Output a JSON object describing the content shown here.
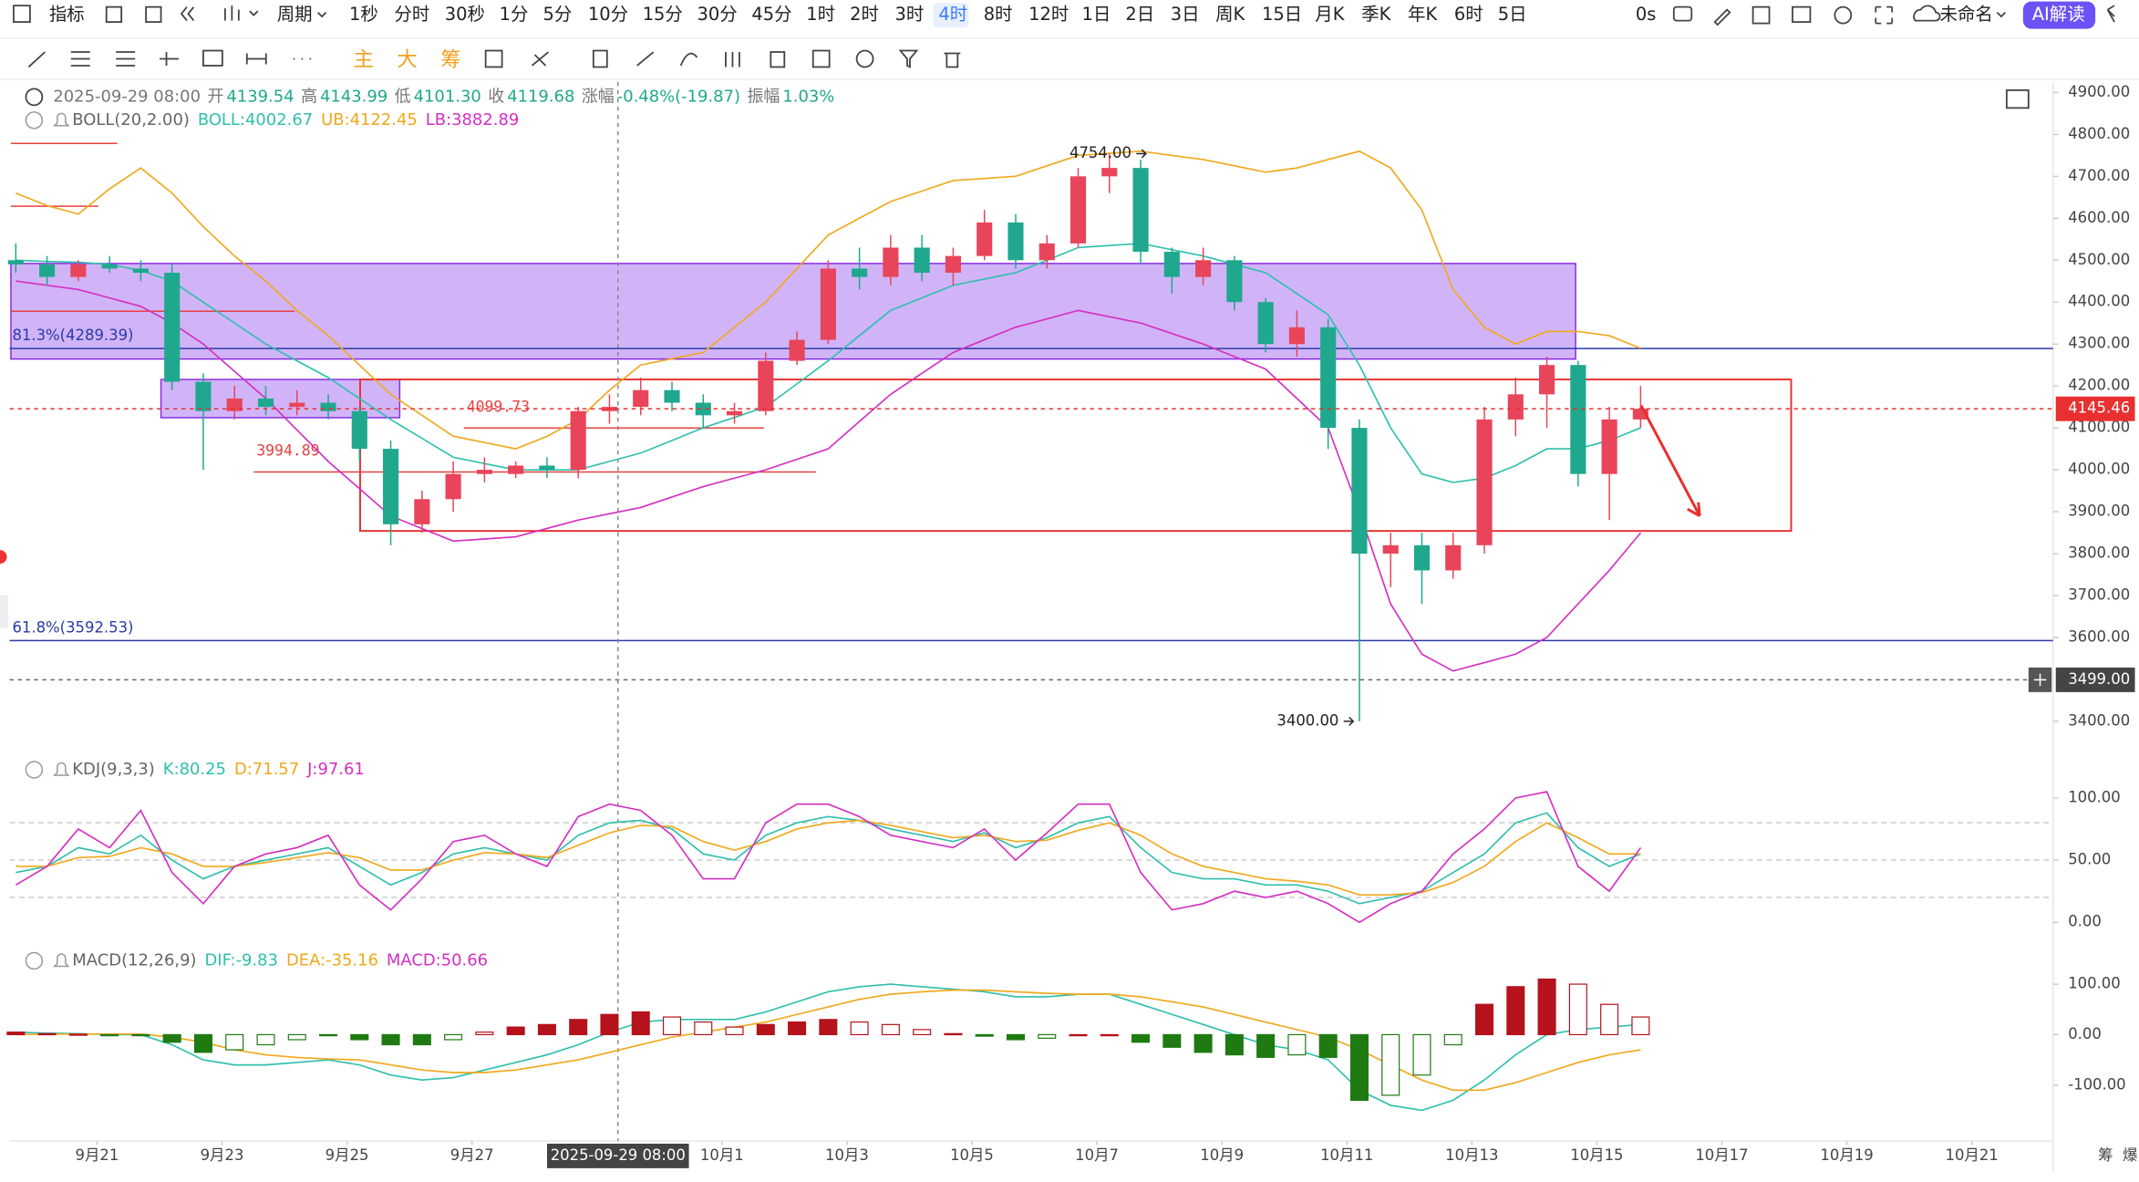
{
  "toolbar": {
    "indicator": "指标",
    "period": "周期",
    "periods": [
      "1秒",
      "分时",
      "30秒",
      "1分",
      "5分",
      "10分",
      "15分",
      "30分",
      "45分",
      "1时",
      "2时",
      "3时",
      "4时",
      "8时",
      "12时",
      "1日",
      "2日",
      "3日",
      "周K",
      "15日",
      "月K",
      "季K",
      "年K",
      "6时",
      "5日"
    ],
    "timer": "0s",
    "layout_name": "未命名",
    "ai": "AI解读"
  },
  "tools": [
    "主",
    "大",
    "筹"
  ],
  "info": {
    "time": "2025-09-29 08:00",
    "fields": [
      [
        "开",
        "4139.54"
      ],
      [
        "高",
        "4143.99"
      ],
      [
        "低",
        "4101.30"
      ],
      [
        "收",
        "4119.68"
      ],
      [
        "涨幅",
        "-0.48%(-19.87)"
      ],
      [
        "振幅",
        "1.03%"
      ]
    ]
  },
  "crosshair": {
    "time": "2025-09-29 08:00",
    "price": {
      "value": 3499,
      "label": "3499.00"
    }
  },
  "side_labels": [
    "筹",
    "爆"
  ],
  "chart_data": [
    {
      "type": "candlestick",
      "indicator": "BOLL(20,2.00)",
      "xlim": [
        -0.2,
        65.2
      ],
      "xticks": [
        {
          "value": 2.6,
          "label": "9月21"
        },
        {
          "value": 6.6,
          "label": "9月23"
        },
        {
          "value": 10.6,
          "label": "9月25"
        },
        {
          "value": 14.6,
          "label": "9月27"
        },
        {
          "value": 22.6,
          "label": "10月1"
        },
        {
          "value": 26.6,
          "label": "10月3"
        },
        {
          "value": 30.6,
          "label": "10月5"
        },
        {
          "value": 34.6,
          "label": "10月7"
        },
        {
          "value": 38.6,
          "label": "10月9"
        },
        {
          "value": 42.6,
          "label": "10月11"
        },
        {
          "value": 46.6,
          "label": "10月13"
        },
        {
          "value": 50.6,
          "label": "10月15"
        },
        {
          "value": 54.6,
          "label": "10月17"
        },
        {
          "value": 58.6,
          "label": "10月19"
        },
        {
          "value": 62.6,
          "label": "10月21"
        }
      ],
      "ylim": [
        3330,
        4925
      ],
      "yticks": [
        {
          "value": 3400,
          "label": "3400.00"
        },
        {
          "value": 3600,
          "label": "3600.00"
        },
        {
          "value": 3700,
          "label": "3700.00"
        },
        {
          "value": 3800,
          "label": "3800.00"
        },
        {
          "value": 3900,
          "label": "3900.00"
        },
        {
          "value": 4000,
          "label": "4000.00"
        },
        {
          "value": 4100,
          "label": "4100.00"
        },
        {
          "value": 4200,
          "label": "4200.00"
        },
        {
          "value": 4300,
          "label": "4300.00"
        },
        {
          "value": 4400,
          "label": "4400.00"
        },
        {
          "value": 4500,
          "label": "4500.00"
        },
        {
          "value": 4600,
          "label": "4600.00"
        },
        {
          "value": 4700,
          "label": "4700.00"
        },
        {
          "value": 4800,
          "label": "4800.00"
        },
        {
          "value": 4900,
          "label": "4900.00"
        }
      ],
      "up_color": "#e8455a",
      "down_color": "#1fa88e",
      "open": [
        4500,
        4490,
        4460,
        4490,
        4480,
        4470,
        4210,
        4140,
        4170,
        4150,
        4160,
        4140,
        4050,
        3870,
        3930,
        3990,
        3990,
        4010,
        4000,
        4140,
        4150,
        4190,
        4160,
        4130,
        4140,
        4260,
        4310,
        4480,
        4460,
        4530,
        4470,
        4510,
        4590,
        4500,
        4540,
        4700,
        4720,
        4520,
        4460,
        4500,
        4400,
        4300,
        4340,
        4100,
        3800,
        3820,
        3760,
        3820,
        4120,
        4180,
        4250,
        3990,
        4120
      ],
      "high": [
        4540,
        4510,
        4500,
        4510,
        4500,
        4490,
        4230,
        4200,
        4200,
        4190,
        4180,
        4150,
        4070,
        3950,
        4020,
        4030,
        4020,
        4030,
        4150,
        4180,
        4220,
        4210,
        4180,
        4160,
        4280,
        4330,
        4500,
        4530,
        4560,
        4560,
        4530,
        4620,
        4610,
        4560,
        4720,
        4754,
        4740,
        4530,
        4530,
        4510,
        4410,
        4380,
        4360,
        4120,
        3850,
        3850,
        3850,
        4150,
        4220,
        4270,
        4260,
        4150,
        4200
      ],
      "low": [
        4470,
        4440,
        4450,
        4470,
        4450,
        4190,
        4000,
        4120,
        4130,
        4130,
        4120,
        4020,
        3820,
        3850,
        3900,
        3970,
        3980,
        3980,
        3980,
        4110,
        4130,
        4140,
        4100,
        4110,
        4130,
        4250,
        4300,
        4430,
        4440,
        4450,
        4440,
        4500,
        4480,
        4480,
        4530,
        4660,
        4490,
        4420,
        4440,
        4380,
        4280,
        4270,
        4050,
        3400,
        3720,
        3680,
        3740,
        3800,
        4080,
        4100,
        3960,
        3880,
        4100
      ],
      "close": [
        4490,
        4460,
        4490,
        4480,
        4470,
        4210,
        4140,
        4170,
        4150,
        4160,
        4140,
        4050,
        3870,
        3930,
        3990,
        4000,
        4010,
        4000,
        4140,
        4150,
        4190,
        4160,
        4130,
        4140,
        4260,
        4310,
        4480,
        4460,
        4530,
        4470,
        4510,
        4590,
        4500,
        4540,
        4700,
        4720,
        4520,
        4460,
        4500,
        4400,
        4300,
        4340,
        4100,
        3800,
        3820,
        3760,
        3820,
        4120,
        4180,
        4250,
        3990,
        4120,
        4145.46
      ],
      "series": [
        {
          "name": "BOLL:4002.67",
          "color": "#2fbfad",
          "values": [
            4500,
            4497,
            4495,
            4490,
            4475,
            4450,
            4400,
            4350,
            4300,
            4260,
            4220,
            4170,
            4120,
            4075,
            4030,
            4015,
            4000,
            4000,
            4000,
            4020,
            4040,
            4070,
            4100,
            4125,
            4150,
            4205,
            4260,
            4320,
            4380,
            4410,
            4440,
            4455,
            4470,
            4500,
            4530,
            4535,
            4540,
            4525,
            4510,
            4490,
            4470,
            4420,
            4370,
            4250,
            4100,
            3990,
            3970,
            3980,
            4010,
            4050,
            4050,
            4070,
            4100
          ]
        },
        {
          "name": "UB:4122.45",
          "color": "#f0a81c",
          "values": [
            4660,
            4630,
            4610,
            4670,
            4720,
            4660,
            4580,
            4510,
            4450,
            4380,
            4320,
            4250,
            4180,
            4130,
            4080,
            4065,
            4050,
            4080,
            4120,
            4190,
            4250,
            4265,
            4280,
            4340,
            4400,
            4480,
            4560,
            4600,
            4640,
            4665,
            4690,
            4695,
            4700,
            4725,
            4750,
            4755,
            4760,
            4750,
            4740,
            4725,
            4710,
            4720,
            4740,
            4760,
            4720,
            4620,
            4430,
            4340,
            4300,
            4330,
            4330,
            4320,
            4290
          ]
        },
        {
          "name": "LB:3882.89",
          "color": "#d42fc1",
          "values": [
            4450,
            4440,
            4430,
            4410,
            4390,
            4350,
            4300,
            4235,
            4170,
            4095,
            4020,
            3955,
            3890,
            3860,
            3830,
            3835,
            3840,
            3860,
            3880,
            3895,
            3910,
            3935,
            3960,
            3980,
            4000,
            4025,
            4050,
            4115,
            4180,
            4230,
            4280,
            4310,
            4340,
            4360,
            4380,
            4365,
            4350,
            4325,
            4300,
            4270,
            4240,
            4170,
            4100,
            3900,
            3680,
            3560,
            3520,
            3540,
            3560,
            3600,
            3680,
            3760,
            3850
          ]
        }
      ],
      "levels": [
        {
          "value": 4289.39,
          "label": "81.3%(4289.39)",
          "color": "#2a3aa8"
        },
        {
          "value": 3592.53,
          "label": "61.8%(3592.53)",
          "color": "#2a3aa8"
        }
      ],
      "marked_prices": [
        {
          "value": 4099.73,
          "color": "#e84040"
        },
        {
          "value": 3994.89,
          "color": "#e84040"
        }
      ],
      "extremes": [
        {
          "value": 4754,
          "label": "4754.00"
        },
        {
          "value": 3400,
          "label": "3400.00"
        }
      ],
      "last_price": 4145.46
    },
    {
      "type": "line",
      "indicator": "KDJ(9,3,3)",
      "ylim": [
        -20,
        115
      ],
      "yticks": [
        {
          "value": 0,
          "label": "0.00"
        },
        {
          "value": 50,
          "label": "50.00"
        },
        {
          "value": 100,
          "label": "100.00"
        }
      ],
      "reference_lines": [
        20,
        50,
        80
      ],
      "series": [
        {
          "name": "K:80.25",
          "color": "#2fbfad",
          "values": [
            40,
            45,
            60,
            55,
            70,
            50,
            35,
            45,
            50,
            55,
            60,
            45,
            30,
            40,
            55,
            60,
            55,
            50,
            70,
            80,
            82,
            75,
            55,
            50,
            70,
            80,
            85,
            82,
            75,
            70,
            65,
            72,
            60,
            68,
            80,
            85,
            60,
            40,
            35,
            35,
            30,
            30,
            25,
            15,
            20,
            25,
            40,
            55,
            80,
            88,
            60,
            45,
            55
          ]
        },
        {
          "name": "D:71.57",
          "color": "#f0a81c",
          "values": [
            45,
            45,
            52,
            53,
            60,
            55,
            45,
            45,
            48,
            52,
            56,
            52,
            42,
            42,
            50,
            56,
            55,
            52,
            62,
            72,
            78,
            77,
            65,
            58,
            65,
            75,
            80,
            82,
            78,
            73,
            68,
            70,
            65,
            66,
            74,
            80,
            70,
            55,
            45,
            40,
            35,
            33,
            30,
            22,
            22,
            24,
            32,
            45,
            65,
            80,
            68,
            55,
            55
          ]
        },
        {
          "name": "J:97.61",
          "color": "#d42fc1",
          "values": [
            30,
            45,
            75,
            60,
            90,
            40,
            15,
            45,
            55,
            60,
            70,
            30,
            10,
            35,
            65,
            70,
            55,
            45,
            85,
            95,
            90,
            70,
            35,
            35,
            80,
            95,
            95,
            85,
            70,
            65,
            60,
            75,
            50,
            72,
            95,
            95,
            40,
            10,
            15,
            25,
            20,
            25,
            15,
            0,
            15,
            25,
            55,
            75,
            100,
            105,
            45,
            25,
            60
          ]
        }
      ]
    },
    {
      "type": "macd",
      "indicator": "MACD(12,26,9)",
      "ylim": [
        -205,
        130
      ],
      "yticks": [
        {
          "value": -100,
          "label": "-100.00"
        },
        {
          "value": 0,
          "label": "0.00"
        },
        {
          "value": 100,
          "label": "100.00"
        }
      ],
      "series": [
        {
          "name": "DIF:-9.83",
          "color": "#2fbfad",
          "values": [
            5,
            3,
            2,
            0,
            0,
            -20,
            -50,
            -60,
            -60,
            -55,
            -50,
            -60,
            -80,
            -90,
            -85,
            -70,
            -55,
            -40,
            -20,
            5,
            25,
            30,
            30,
            30,
            45,
            65,
            85,
            95,
            100,
            95,
            90,
            85,
            75,
            75,
            80,
            80,
            60,
            40,
            20,
            0,
            -20,
            -30,
            -50,
            -110,
            -140,
            -150,
            -130,
            -90,
            -40,
            0,
            10,
            15,
            20
          ]
        },
        {
          "name": "DEA:-35.16",
          "color": "#f0a81c",
          "values": [
            0,
            1,
            1,
            1,
            1,
            -5,
            -15,
            -30,
            -40,
            -45,
            -48,
            -50,
            -60,
            -70,
            -75,
            -75,
            -70,
            -60,
            -50,
            -35,
            -20,
            -5,
            5,
            15,
            25,
            40,
            55,
            70,
            80,
            85,
            88,
            88,
            85,
            82,
            80,
            80,
            75,
            65,
            55,
            40,
            25,
            10,
            -5,
            -30,
            -60,
            -90,
            -110,
            -110,
            -95,
            -75,
            -55,
            -40,
            -30
          ]
        },
        {
          "name": "MACD:50.66",
          "color": "#d42fc1",
          "kind": "bar",
          "up_color": "#b5121b",
          "down_color": "#1f7a12",
          "values": [
            5,
            2,
            1,
            -1,
            -1,
            -15,
            -35,
            -30,
            -20,
            -10,
            -2,
            -10,
            -20,
            -20,
            -10,
            5,
            15,
            20,
            30,
            40,
            45,
            35,
            25,
            15,
            20,
            25,
            30,
            25,
            20,
            10,
            2,
            -3,
            -10,
            -7,
            0,
            0,
            -15,
            -25,
            -35,
            -40,
            -45,
            -40,
            -45,
            -130,
            -120,
            -80,
            -20,
            60,
            95,
            110,
            100,
            60,
            35
          ]
        }
      ]
    }
  ]
}
